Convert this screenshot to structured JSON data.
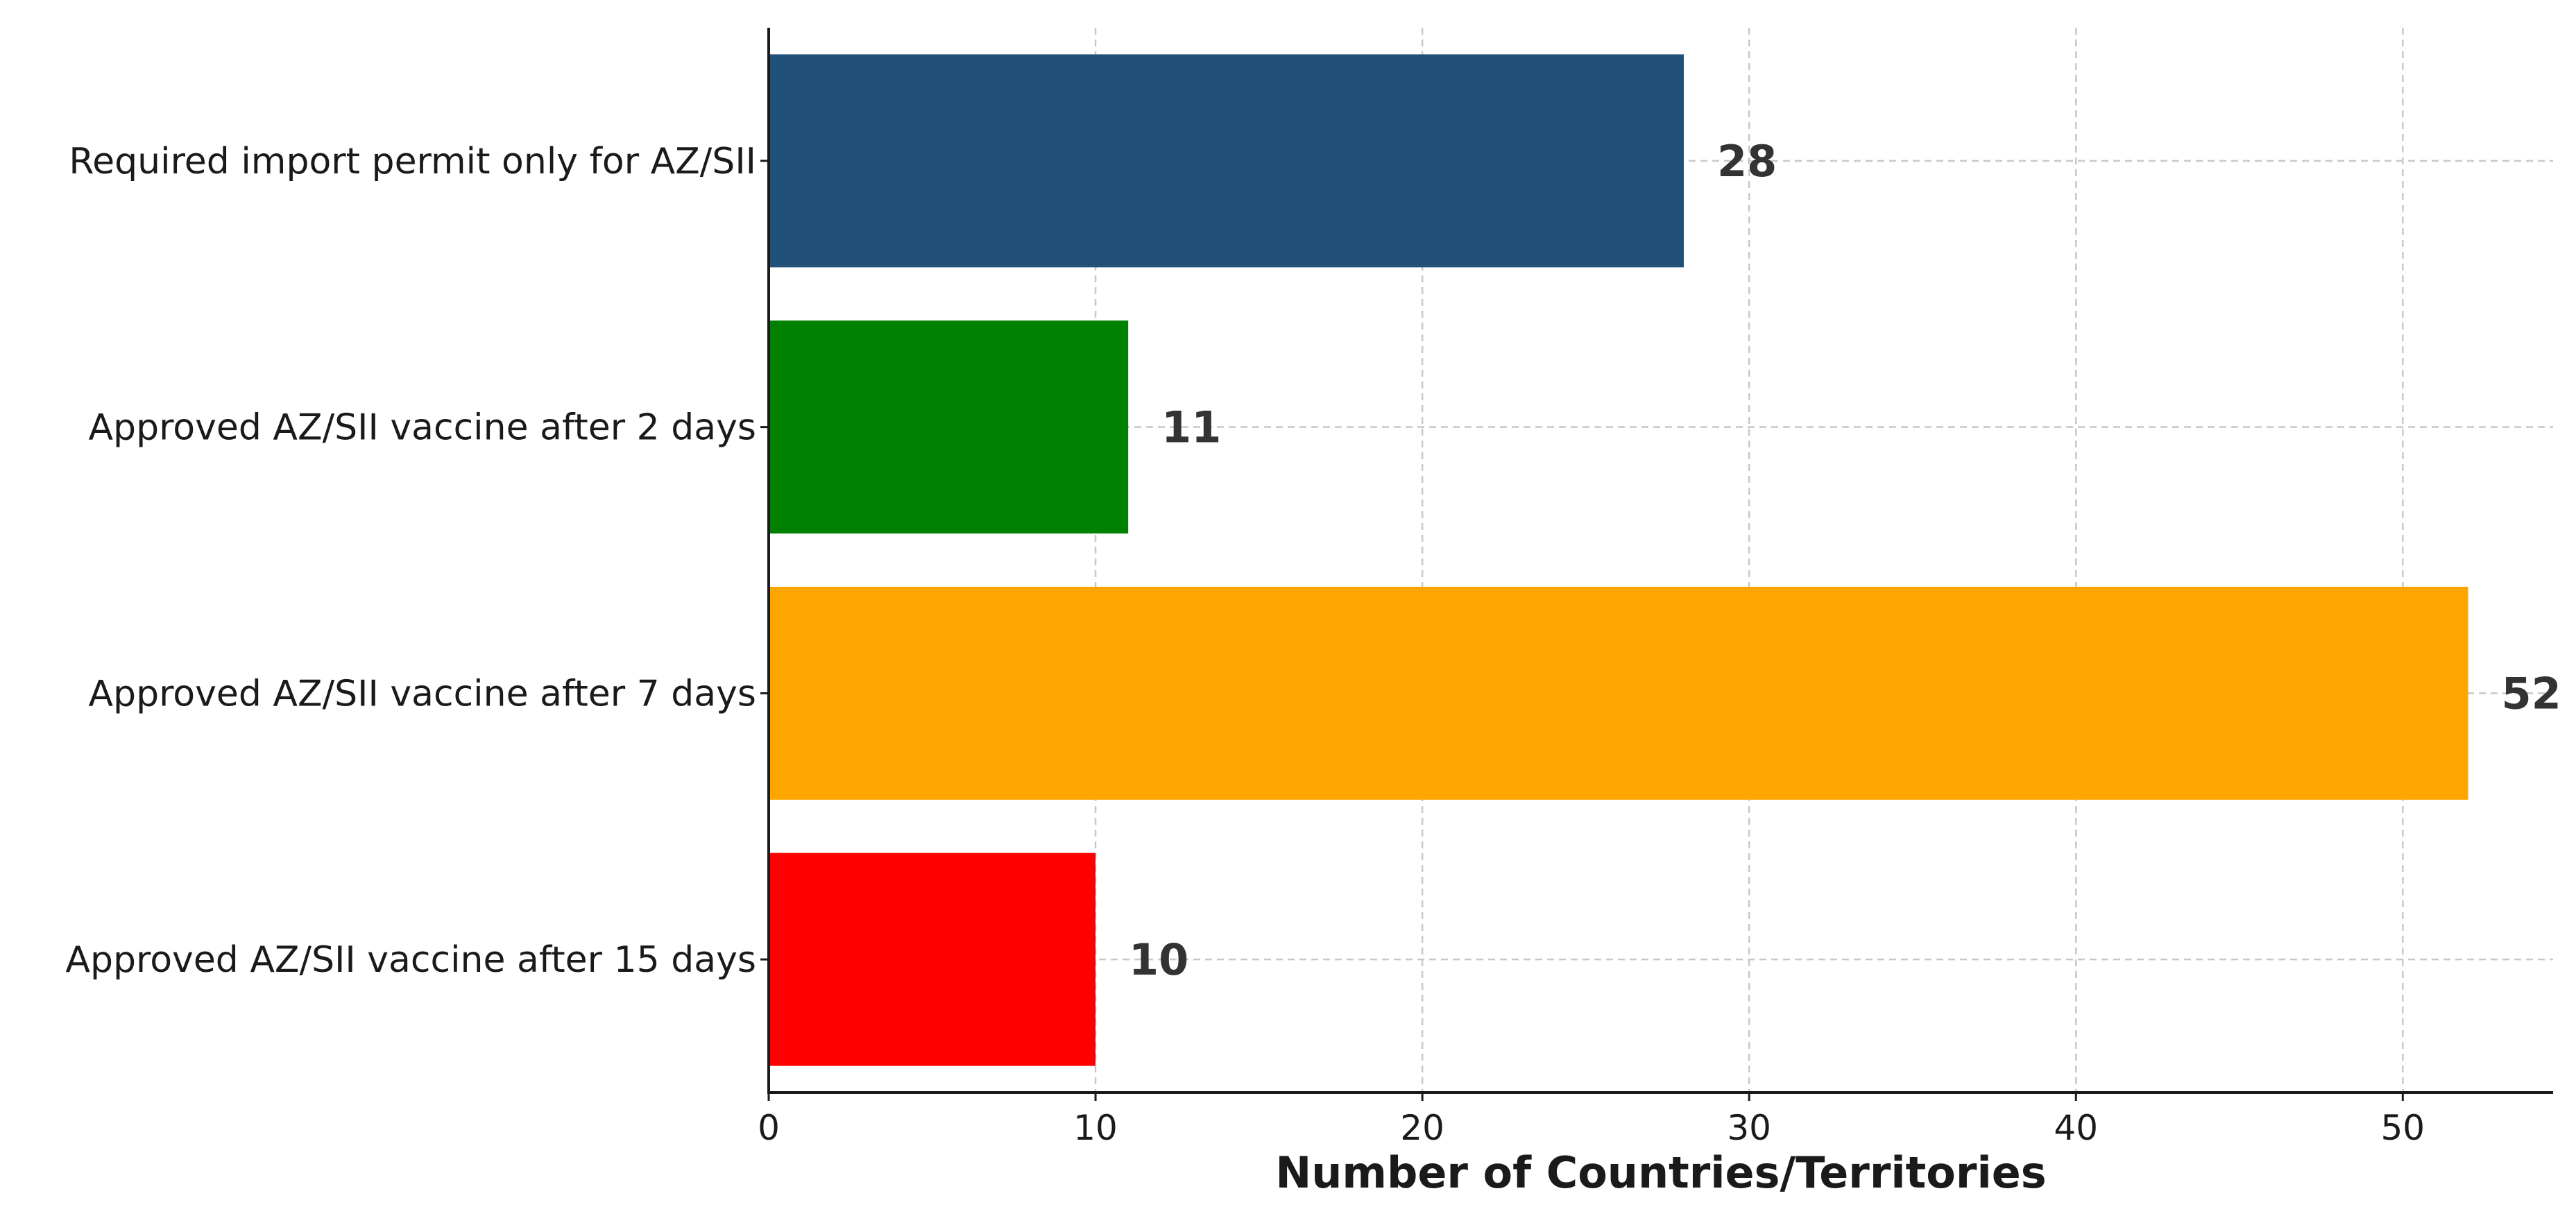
{
  "chart_data": {
    "type": "bar",
    "orientation": "horizontal",
    "categories": [
      "Required import permit only for AZ/SII",
      "Approved AZ/SII vaccine after 2 days",
      "Approved AZ/SII vaccine after 7 days",
      "Approved AZ/SII vaccine after 15 days"
    ],
    "values": [
      28,
      11,
      52,
      10
    ],
    "colors": [
      "#215178",
      "#008000",
      "#ffa500",
      "#ff0000"
    ],
    "data_labels": [
      "28",
      "11",
      "52",
      "10"
    ],
    "xlabel": "Number of Countries/Territories",
    "ylabel": "",
    "title": "",
    "xlim": [
      0,
      54.6
    ],
    "xticks": [
      0,
      10,
      20,
      30,
      40,
      50
    ],
    "grid": true,
    "legend": "none"
  }
}
